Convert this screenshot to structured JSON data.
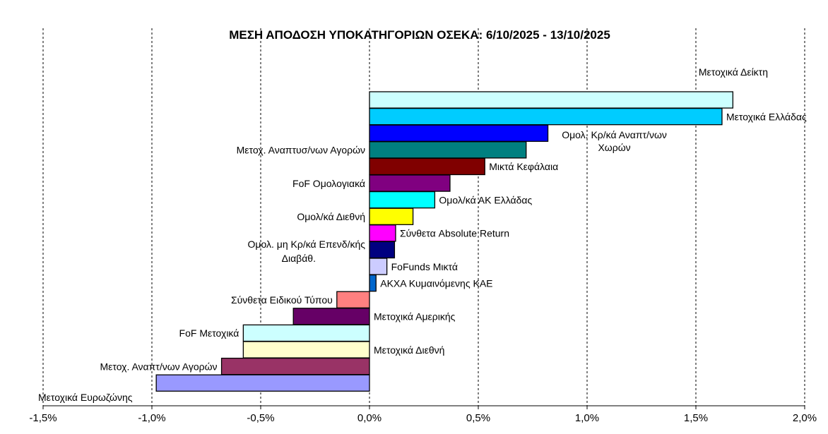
{
  "chart_data": {
    "type": "bar",
    "orientation": "horizontal",
    "title": "ΜΕΣΗ ΑΠΟΔΟΣΗ ΥΠΟΚΑΤΗΓΟΡΙΩΝ ΟΣΕΚΑ: 6/10/2025 - 13/10/2025",
    "xlabel": "",
    "ylabel": "",
    "xlim": [
      -1.5,
      2.0
    ],
    "x_ticks": [
      "-1,5%",
      "-1,0%",
      "-0,5%",
      "0,0%",
      "0,5%",
      "1,0%",
      "1,5%",
      "2,0%"
    ],
    "grid": "vertical-dashed",
    "legend": "none",
    "categories": [
      {
        "label": [
          "Μετοχικά Δείκτη"
        ],
        "value": 1.67,
        "color": "#CCFFFF",
        "label_side": "above-right"
      },
      {
        "label": [
          "Μετοχικά Ελλάδας"
        ],
        "value": 1.62,
        "color": "#00CCFF",
        "label_side": "right"
      },
      {
        "label": [
          "Ομολ. Κρ/κά Αναπτ/νων",
          "Χωρών"
        ],
        "value": 0.82,
        "color": "#0000FF",
        "label_side": "right"
      },
      {
        "label": [
          "Μετοχ. Αναπτυσ/νων Αγορών"
        ],
        "value": 0.72,
        "color": "#008080",
        "label_side": "left"
      },
      {
        "label": [
          "Μικτά Κεφάλαια"
        ],
        "value": 0.53,
        "color": "#800000",
        "label_side": "right"
      },
      {
        "label": [
          "FoF Ομολογιακά"
        ],
        "value": 0.37,
        "color": "#800080",
        "label_side": "left"
      },
      {
        "label": [
          "Ομολ/κά ΑΚ Ελλάδας"
        ],
        "value": 0.3,
        "color": "#00FFFF",
        "label_side": "right"
      },
      {
        "label": [
          "Ομολ/κά Διεθνή"
        ],
        "value": 0.2,
        "color": "#FFFF00",
        "label_side": "left"
      },
      {
        "label": [
          "Σύνθετα Absolute Return"
        ],
        "value": 0.12,
        "color": "#FF00FF",
        "label_side": "right"
      },
      {
        "label": [
          "Ομολ. μη Κρ/κά Επενδ/κής",
          "Διαβάθ."
        ],
        "value": 0.115,
        "color": "#000080",
        "label_side": "left"
      },
      {
        "label": [
          "FoFunds Μικτά"
        ],
        "value": 0.08,
        "color": "#CCCCFF",
        "label_side": "right"
      },
      {
        "label": [
          "ΑΚΧΑ Κυμαινόμενης ΚΑΕ"
        ],
        "value": 0.03,
        "color": "#0066CC",
        "label_side": "right"
      },
      {
        "label": [
          "Σύνθετα Ειδικού Τύπου"
        ],
        "value": -0.15,
        "color": "#FF8080",
        "label_side": "left"
      },
      {
        "label": [
          "Μετοχικά Αμερικής"
        ],
        "value": -0.35,
        "color": "#660066",
        "label_side": "right"
      },
      {
        "label": [
          "FoF Μετοχικά"
        ],
        "value": -0.58,
        "color": "#CCFFFF",
        "label_side": "left"
      },
      {
        "label": [
          "Μετοχικά Διεθνή"
        ],
        "value": -0.58,
        "color": "#FFFFCC",
        "label_side": "right"
      },
      {
        "label": [
          "Μετοχ. Αναπτ/νων Αγορών"
        ],
        "value": -0.68,
        "color": "#993366",
        "label_side": "left"
      },
      {
        "label": [
          "Μετοχικά Ευρωζώνης"
        ],
        "value": -0.98,
        "color": "#9999FF",
        "label_side": "below-left"
      }
    ]
  }
}
